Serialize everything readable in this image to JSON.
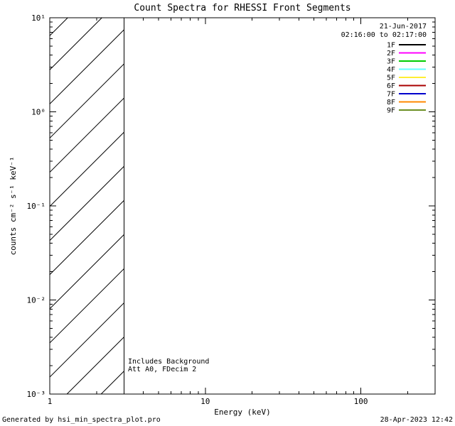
{
  "title": "Count Spectra for RHESSI Front Segments",
  "header": {
    "date": "21-Jun-2017",
    "time_range": "02:16:00 to 02:17:00"
  },
  "legend": {
    "entries": [
      {
        "label": "1F",
        "color": "#000000"
      },
      {
        "label": "2F",
        "color": "#ff00ff"
      },
      {
        "label": "3F",
        "color": "#00cc00"
      },
      {
        "label": "4F",
        "color": "#66ffff"
      },
      {
        "label": "5F",
        "color": "#ffee33"
      },
      {
        "label": "6F",
        "color": "#aa0000"
      },
      {
        "label": "7F",
        "color": "#0000cc"
      },
      {
        "label": "8F",
        "color": "#ff8800"
      },
      {
        "label": "9F",
        "color": "#6b8e23"
      }
    ]
  },
  "axes": {
    "xlabel": "Energy (keV)",
    "ylabel": "counts cm⁻² s⁻¹ keV⁻¹",
    "x_tick_labels": [
      "1",
      "10",
      "100"
    ],
    "y_tick_labels": [
      "10¹",
      "10⁰",
      "10⁻¹",
      "10⁻²",
      "10⁻³"
    ]
  },
  "annotations": {
    "line1": "Includes Background",
    "line2": "Att A0, FDecim 2"
  },
  "footer": {
    "left": "Generated by hsi_min_spectra_plot.pro",
    "right": "28-Apr-2023 12:42"
  },
  "chart_data": {
    "type": "line",
    "title": "Count Spectra for RHESSI Front Segments",
    "xlabel": "Energy (keV)",
    "ylabel": "counts cm^-2 s^-1 keV^-1",
    "xscale": "log",
    "yscale": "log",
    "xlim": [
      1,
      300
    ],
    "ylim": [
      0.001,
      10
    ],
    "x_ticks": [
      1,
      10,
      100
    ],
    "y_ticks": [
      10,
      1,
      0.1,
      0.01,
      0.001
    ],
    "grid": false,
    "legend_position": "top-right",
    "time_interval": "21-Jun-2017 02:16:00 to 02:17:00",
    "hatched_region": {
      "x_start": 1,
      "x_end": 3
    },
    "series": [
      {
        "name": "1F",
        "color": "#000000",
        "x": [],
        "values": []
      },
      {
        "name": "2F",
        "color": "#ff00ff",
        "x": [],
        "values": []
      },
      {
        "name": "3F",
        "color": "#00cc00",
        "x": [],
        "values": []
      },
      {
        "name": "4F",
        "color": "#66ffff",
        "x": [],
        "values": []
      },
      {
        "name": "5F",
        "color": "#ffee33",
        "x": [],
        "values": []
      },
      {
        "name": "6F",
        "color": "#aa0000",
        "x": [],
        "values": []
      },
      {
        "name": "7F",
        "color": "#0000cc",
        "x": [],
        "values": []
      },
      {
        "name": "8F",
        "color": "#ff8800",
        "x": [],
        "values": []
      },
      {
        "name": "9F",
        "color": "#6b8e23",
        "x": [],
        "values": []
      }
    ]
  }
}
